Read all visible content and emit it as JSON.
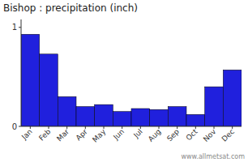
{
  "chart_data": {
    "type": "bar",
    "title": "Bishop : precipitation (inch)",
    "categories": [
      "Jan",
      "Feb",
      "Mar",
      "Apr",
      "May",
      "Jun",
      "Jul",
      "Aug",
      "Sep",
      "Oct",
      "Nov",
      "Dec"
    ],
    "values": [
      0.93,
      0.73,
      0.3,
      0.2,
      0.22,
      0.15,
      0.18,
      0.17,
      0.2,
      0.12,
      0.4,
      0.57
    ],
    "color": "#2020dd",
    "ylim": [
      0,
      1.08
    ],
    "yticks": [
      0,
      1
    ],
    "grid": false,
    "annotations": [
      "www.allmetsat.com"
    ]
  }
}
